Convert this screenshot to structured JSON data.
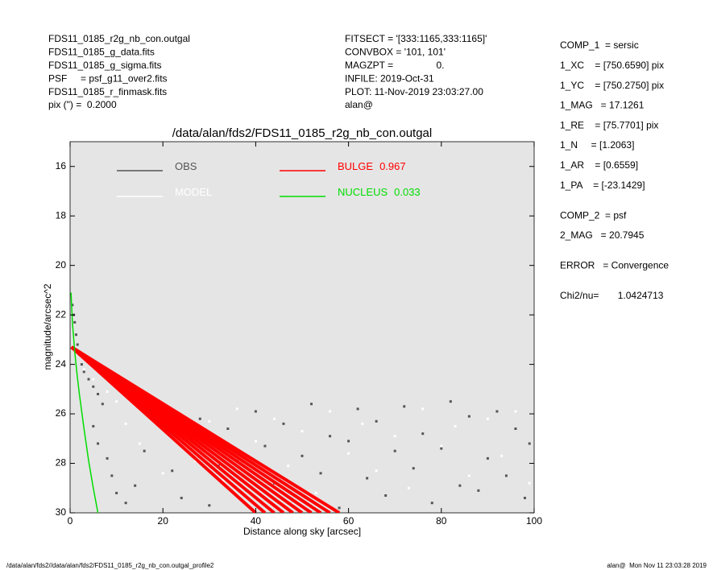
{
  "header": {
    "left": [
      "FDS11_0185_r2g_nb_con.outgal",
      "FDS11_0185_g_data.fits",
      "FDS11_0185_g_sigma.fits",
      "PSF     = psf_g11_over2.fits",
      "FDS11_0185_r_finmask.fits",
      "pix (\") =  0.2000"
    ],
    "middle": [
      "FITSECT = '[333:1165,333:1165]'",
      "CONVBOX = '101, 101'",
      "MAGZPT =                0.",
      "INFILE: 2019-Oct-31",
      "PLOT: 11-Nov-2019 23:03:27.00",
      "alan@"
    ]
  },
  "params": [
    {
      "text": "COMP_1  = sersic",
      "gap": false
    },
    {
      "text": "1_XC    = [750.6590] pix",
      "gap": false
    },
    {
      "text": "1_YC    = [750.2750] pix",
      "gap": false
    },
    {
      "text": "1_MAG   = 17.1261",
      "gap": false
    },
    {
      "text": "1_RE    = [75.7701] pix",
      "gap": false
    },
    {
      "text": "1_N     = [1.2063]",
      "gap": false
    },
    {
      "text": "1_AR    = [0.6559]",
      "gap": false
    },
    {
      "text": "1_PA    = [-23.1429]",
      "gap": false
    },
    {
      "text": "COMP_2  = psf",
      "gap": true
    },
    {
      "text": "2_MAG   = 20.7945",
      "gap": false
    },
    {
      "text": "ERROR   = Convergence",
      "gap": true
    },
    {
      "text": "Chi2/nu=       1.0424713",
      "gap": true
    }
  ],
  "footer": {
    "left": "/data/alan/fds2//data/alan/fds2/FDS11_0185_r2g_nb_con.outgal_profile2",
    "right": "alan@  Mon Nov 11 23:03:28 2019"
  },
  "chart_data": {
    "type": "scatter",
    "title": "/data/alan/fds2/FDS11_0185_r2g_nb_con.outgal",
    "x_label": "Distance along sky [arcsec]",
    "y_label": "magnitude/arcsec^2",
    "xlim": [
      0,
      100
    ],
    "ylim": [
      15,
      30
    ],
    "y_inverted": true,
    "xticks": [
      0,
      20,
      40,
      60,
      80,
      100
    ],
    "yticks": [
      16,
      18,
      20,
      22,
      24,
      26,
      28,
      30
    ],
    "background": "#e5e5e5",
    "series": [
      {
        "name": "OBS",
        "color": "#555555",
        "mode": "points",
        "x": [
          0.5,
          0.8,
          1,
          1.3,
          1.6,
          2,
          2.5,
          3,
          4,
          5,
          6,
          7,
          5,
          6,
          8,
          9,
          10,
          12,
          14,
          16,
          18,
          20,
          22,
          24,
          26,
          28,
          30,
          32,
          34,
          36,
          38,
          40,
          42,
          44,
          46,
          48,
          50,
          52,
          54,
          56,
          58,
          60,
          62,
          64,
          66,
          68,
          70,
          72,
          74,
          76,
          78,
          80,
          82,
          84,
          86,
          88,
          90,
          92,
          94,
          96,
          98,
          99
        ],
        "values": [
          21.6,
          22,
          22.3,
          22.8,
          23.2,
          23.6,
          24,
          24.3,
          24.6,
          24.9,
          25.2,
          25.6,
          26.5,
          27.2,
          27.8,
          28.5,
          29.2,
          29.6,
          28.9,
          27.5,
          25.4,
          26,
          28.3,
          29.4,
          27,
          26.2,
          29.7,
          28.1,
          26.6,
          27.9,
          29.1,
          25.9,
          27.3,
          28.8,
          26.4,
          29.5,
          27.7,
          25.6,
          28.4,
          26.9,
          29.8,
          27.1,
          25.8,
          28.6,
          26.3,
          29.3,
          27.5,
          25.7,
          28.2,
          26.8,
          29.6,
          27.4,
          25.5,
          28.9,
          26.1,
          29.1,
          27.8,
          25.9,
          28.5,
          26.6,
          29.4,
          27.2
        ]
      },
      {
        "name": "MODEL",
        "color": "#ffffff",
        "mode": "points",
        "x": [
          1,
          3,
          5,
          8,
          10,
          12,
          15,
          18,
          20,
          24,
          27,
          30,
          33,
          36,
          40,
          44,
          47,
          50,
          53,
          56,
          60,
          63,
          66,
          70,
          73,
          76,
          80,
          83,
          86,
          90,
          93,
          96,
          99
        ],
        "values": [
          23.4,
          24.2,
          24.6,
          25.1,
          25.5,
          26.4,
          27.2,
          26.1,
          28.4,
          26.8,
          27.9,
          26.3,
          28.7,
          25.8,
          27.1,
          26.2,
          28.1,
          26.7,
          29.2,
          25.9,
          27.6,
          26.4,
          28.3,
          26.9,
          29,
          25.8,
          27.3,
          26.5,
          28.5,
          26.2,
          27.7,
          25.9,
          28.8
        ]
      },
      {
        "name": "BULGE",
        "fraction": 0.967,
        "color": "#ff0000",
        "mode": "fan",
        "lines": [
          {
            "x": [
              0.3,
              40
            ],
            "values": [
              23.3,
              30
            ]
          },
          {
            "x": [
              0.3,
              42
            ],
            "values": [
              23.3,
              30
            ]
          },
          {
            "x": [
              0.3,
              44
            ],
            "values": [
              23.3,
              30
            ]
          },
          {
            "x": [
              0.3,
              46
            ],
            "values": [
              23.3,
              30
            ]
          },
          {
            "x": [
              0.3,
              48
            ],
            "values": [
              23.3,
              30
            ]
          },
          {
            "x": [
              0.3,
              50
            ],
            "values": [
              23.3,
              30
            ]
          },
          {
            "x": [
              0.3,
              52
            ],
            "values": [
              23.3,
              30
            ]
          },
          {
            "x": [
              0.3,
              54
            ],
            "values": [
              23.3,
              30
            ]
          },
          {
            "x": [
              0.3,
              56
            ],
            "values": [
              23.3,
              30
            ]
          },
          {
            "x": [
              0.3,
              58
            ],
            "values": [
              23.3,
              30
            ]
          }
        ]
      },
      {
        "name": "NUCLEUS",
        "fraction": 0.033,
        "color": "#00dd00",
        "mode": "line",
        "x": [
          0.2,
          0.5,
          1,
          1.5,
          2,
          3,
          4,
          5,
          6
        ],
        "values": [
          21.1,
          22.3,
          23.5,
          24.4,
          25.2,
          26.6,
          27.9,
          29,
          30
        ]
      }
    ]
  }
}
